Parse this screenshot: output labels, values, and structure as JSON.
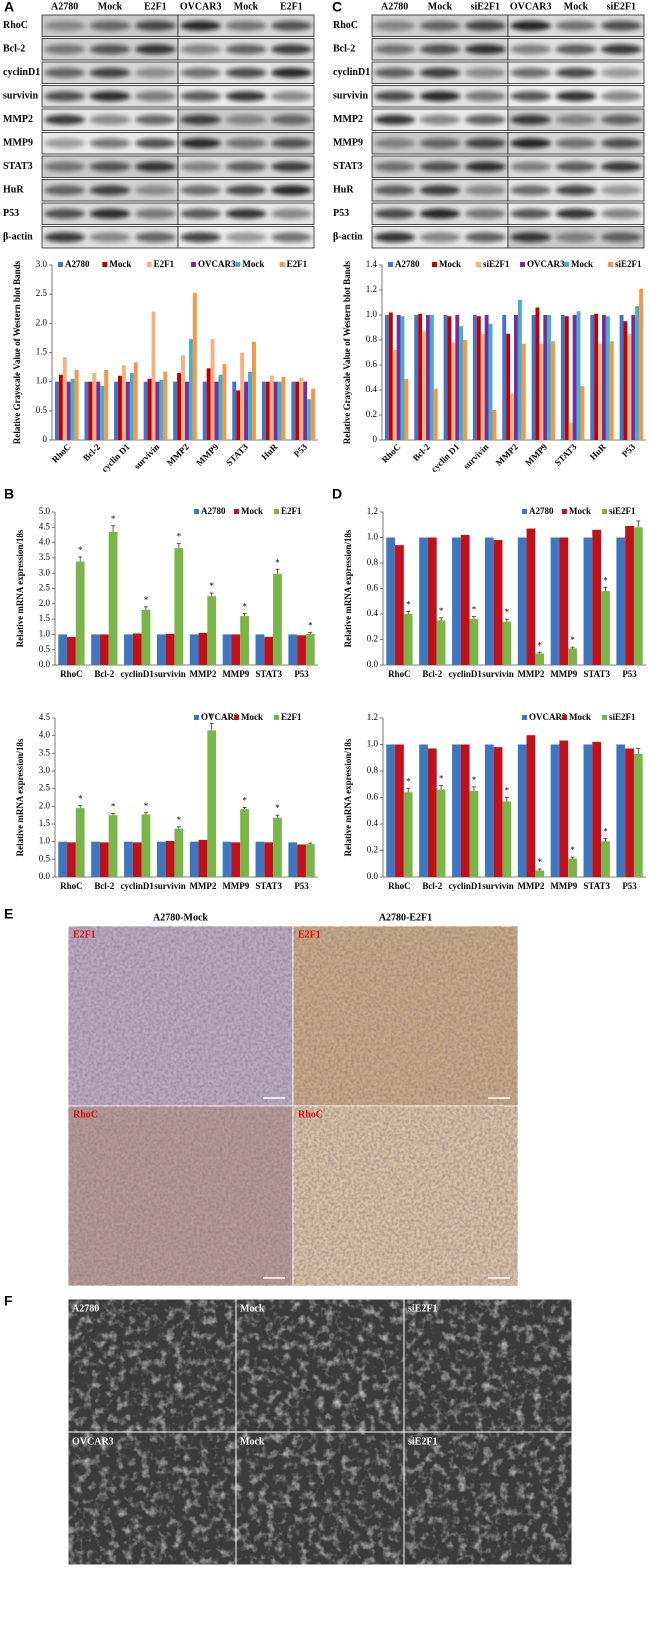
{
  "panel_labels": [
    "A",
    "B",
    "C",
    "D",
    "E",
    "F"
  ],
  "blots": [
    {
      "lanes": [
        "A2780",
        "Mock",
        "E2F1",
        "OVCAR3",
        "Mock",
        "E2F1"
      ],
      "rows": [
        "RhoC",
        "Bcl-2",
        "cyclinD1",
        "survivin",
        "MMP2",
        "MMP9",
        "STAT3",
        "HuR",
        "P53",
        "β-actin"
      ]
    },
    {
      "lanes": [
        "A2780",
        "Mock",
        "siE2F1",
        "OVCAR3",
        "Mock",
        "siE2F1"
      ],
      "rows": [
        "RhoC",
        "Bcl-2",
        "cyclinD1",
        "survivin",
        "MMP2",
        "MMP9",
        "STAT3",
        "HuR",
        "P53",
        "β-actin"
      ]
    }
  ],
  "chart_data": [
    {
      "type": "bar",
      "y_label": "Relative Grayscale Value of Western blot Bands",
      "categories": [
        "RhoC",
        "Bcl-2",
        "cyclin D1",
        "survivin",
        "MMP2",
        "MMP9",
        "STAT3",
        "HuR",
        "P53"
      ],
      "series": [
        {
          "name": "A2780",
          "color": "#4472c4",
          "values": [
            1.0,
            1.0,
            1.0,
            1.0,
            1.0,
            1.0,
            1.0,
            1.0,
            1.0
          ]
        },
        {
          "name": "Mock",
          "color": "#c00000",
          "values": [
            1.12,
            1.0,
            1.1,
            1.05,
            1.15,
            1.23,
            0.85,
            1.0,
            1.0
          ]
        },
        {
          "name": "E2F1",
          "color": "#f4b183",
          "values": [
            1.42,
            1.15,
            1.28,
            2.2,
            1.45,
            1.73,
            1.5,
            1.1,
            1.07
          ]
        },
        {
          "name": "OVCAR3",
          "color": "#7030a0",
          "values": [
            1.0,
            1.0,
            1.0,
            1.0,
            1.0,
            1.0,
            1.0,
            1.0,
            1.0
          ]
        },
        {
          "name": "Mock",
          "color": "#4bacc6",
          "values": [
            1.05,
            0.93,
            1.15,
            1.03,
            1.73,
            1.12,
            1.17,
            1.0,
            0.7
          ]
        },
        {
          "name": "E2F1",
          "color": "#f79646",
          "values": [
            1.2,
            1.2,
            1.33,
            1.17,
            2.52,
            1.3,
            1.68,
            1.08,
            0.88
          ]
        }
      ],
      "ylim": [
        0,
        3
      ],
      "yticks": [
        0,
        0.5,
        {
          "value": 1,
          "label": "1.0"
        },
        1.5,
        {
          "value": 2,
          "label": "2.0"
        },
        2.5,
        {
          "value": 3,
          "label": "3.0"
        }
      ],
      "grid": false,
      "legend": "top"
    },
    {
      "type": "bar",
      "y_label": "Relative Grayscale Value of Western blot Bands",
      "categories": [
        "RhoC",
        "Bcl-2",
        "cyclin D1",
        "survivin",
        "MMP2",
        "MMP9",
        "STAT3",
        "HuR",
        "P53"
      ],
      "series": [
        {
          "name": "A2780",
          "color": "#4472c4",
          "values": [
            1.0,
            1.0,
            1.0,
            1.0,
            1.0,
            1.0,
            1.0,
            1.0,
            1.0
          ]
        },
        {
          "name": "Mock",
          "color": "#c00000",
          "values": [
            1.02,
            1.01,
            0.99,
            0.99,
            0.85,
            1.06,
            0.99,
            1.01,
            0.95
          ]
        },
        {
          "name": "siE2F1",
          "color": "#f4b183",
          "values": [
            0.72,
            0.87,
            0.78,
            0.85,
            0.37,
            0.77,
            0.14,
            0.77,
            0.85
          ]
        },
        {
          "name": "OVCAR3",
          "color": "#7030a0",
          "values": [
            1.0,
            1.0,
            1.0,
            1.0,
            1.0,
            1.0,
            1.0,
            1.0,
            1.0
          ]
        },
        {
          "name": "Mock",
          "color": "#4bacc6",
          "values": [
            0.99,
            1.0,
            0.91,
            0.93,
            1.12,
            1.0,
            1.03,
            0.99,
            1.07
          ]
        },
        {
          "name": "siE2F1",
          "color": "#f79646",
          "values": [
            0.49,
            0.41,
            0.8,
            0.24,
            0.77,
            0.79,
            0.43,
            0.79,
            1.21
          ]
        }
      ],
      "ylim": [
        0,
        1.4
      ],
      "yticks": [
        0,
        0.2,
        0.4,
        0.6,
        0.8,
        {
          "value": 1,
          "label": "1.0"
        },
        1.2,
        1.4
      ],
      "grid": false,
      "legend": "top"
    },
    {
      "type": "bar",
      "y_label": "Relative mRNA expression/18s",
      "categories": [
        "RhoC",
        "Bcl-2",
        "cyclinD1",
        "survivin",
        "MMP2",
        "MMP9",
        "STAT3",
        "P53"
      ],
      "series": [
        {
          "name": "A2780",
          "color": "#3f76c0",
          "values": [
            1,
            1,
            1,
            1,
            1,
            1,
            1,
            1
          ]
        },
        {
          "name": "Mock",
          "color": "#c0111a",
          "values": [
            0.92,
            1.0,
            1.03,
            1.02,
            1.05,
            1.0,
            0.92,
            0.97
          ]
        },
        {
          "name": "E2F1",
          "color": "#79b548",
          "values": [
            3.38,
            4.35,
            1.8,
            3.82,
            2.25,
            1.6,
            2.98,
            1.02
          ],
          "errors": [
            0.15,
            0.2,
            0.1,
            0.15,
            0.1,
            0.08,
            0.15,
            0.05
          ],
          "significance": [
            "*",
            "*",
            "*",
            "*",
            "*",
            "*",
            "*",
            "*"
          ]
        }
      ],
      "ylim": [
        0,
        5
      ],
      "yticks": [
        {
          "value": 0,
          "label": "0.0"
        },
        0.5,
        {
          "value": 1,
          "label": "1.0"
        },
        1.5,
        {
          "value": 2,
          "label": "2.0"
        },
        2.5,
        {
          "value": 3,
          "label": "3.0"
        },
        3.5,
        {
          "value": 4,
          "label": "4.0"
        },
        4.5,
        {
          "value": 5,
          "label": "5.0"
        }
      ],
      "grid": false,
      "legend": "top-right"
    },
    {
      "type": "bar",
      "y_label": "Relative mRNA expression/18s",
      "categories": [
        "RhoC",
        "Bcl-2",
        "cyclinD1",
        "survivin",
        "MMP2",
        "MMP9",
        "STAT3",
        "P53"
      ],
      "series": [
        {
          "name": "OVCAR3",
          "color": "#3f76c0",
          "values": [
            1,
            1,
            1,
            1,
            1,
            1,
            1,
            0.98
          ]
        },
        {
          "name": "Mock",
          "color": "#c0111a",
          "values": [
            0.98,
            0.98,
            0.98,
            1.02,
            1.05,
            0.98,
            0.98,
            0.92
          ]
        },
        {
          "name": "E2F1",
          "color": "#79b548",
          "values": [
            1.95,
            1.75,
            1.77,
            1.37,
            4.15,
            1.92,
            1.68,
            0.93
          ],
          "errors": [
            0.07,
            0.05,
            0.05,
            0.05,
            0.2,
            0.05,
            0.07,
            0.03
          ],
          "significance": [
            "*",
            "*",
            "*",
            "*",
            "*",
            "*",
            "*",
            null
          ]
        }
      ],
      "ylim": [
        0,
        4.5
      ],
      "yticks": [
        {
          "value": 0,
          "label": "0.0"
        },
        0.5,
        {
          "value": 1,
          "label": "1.0"
        },
        1.5,
        {
          "value": 2,
          "label": "2.0"
        },
        2.5,
        {
          "value": 3,
          "label": "3.0"
        },
        3.5,
        {
          "value": 4,
          "label": "4.0"
        },
        4.5
      ],
      "grid": false,
      "legend": "top-right"
    },
    {
      "type": "bar",
      "y_label": "Relative mRNA expression/18s",
      "categories": [
        "RhoC",
        "Bcl-2",
        "cyclinD1",
        "survivin",
        "MMP2",
        "MMP9",
        "STAT3",
        "P53"
      ],
      "series": [
        {
          "name": "A2780",
          "color": "#3f76c0",
          "values": [
            1,
            1,
            1,
            1,
            1,
            1,
            1,
            1
          ]
        },
        {
          "name": "Mock",
          "color": "#c0111a",
          "values": [
            0.94,
            1.0,
            1.02,
            0.98,
            1.07,
            1.0,
            1.06,
            1.09
          ]
        },
        {
          "name": "siE2F1",
          "color": "#79b548",
          "values": [
            0.4,
            0.35,
            0.36,
            0.34,
            0.09,
            0.13,
            0.58,
            1.08
          ],
          "errors": [
            0.02,
            0.02,
            0.02,
            0.02,
            0.01,
            0.01,
            0.03,
            0.05
          ],
          "significance": [
            "*",
            "*",
            "*",
            "*",
            "*",
            "*",
            "*",
            null
          ]
        }
      ],
      "ylim": [
        0,
        1.2
      ],
      "yticks": [
        {
          "value": 0,
          "label": "0.0"
        },
        0.2,
        0.4,
        0.6,
        0.8,
        {
          "value": 1,
          "label": "1.0"
        },
        1.2
      ],
      "grid": false,
      "legend": "top-right"
    },
    {
      "type": "bar",
      "y_label": "Relative mRNA expression/18s",
      "categories": [
        "RhoC",
        "Bcl-2",
        "cyclinD1",
        "survivin",
        "MMP2",
        "MMP9",
        "STAT3",
        "P53"
      ],
      "series": [
        {
          "name": "OVCAR3",
          "color": "#3f76c0",
          "values": [
            1,
            1,
            1,
            1,
            1,
            1,
            1,
            1
          ]
        },
        {
          "name": "Mock",
          "color": "#c0111a",
          "values": [
            1.0,
            0.97,
            1.0,
            0.98,
            1.07,
            1.03,
            1.02,
            0.97
          ]
        },
        {
          "name": "siE2F1",
          "color": "#79b548",
          "values": [
            0.64,
            0.66,
            0.65,
            0.57,
            0.05,
            0.14,
            0.27,
            0.93
          ],
          "errors": [
            0.03,
            0.03,
            0.03,
            0.03,
            0.01,
            0.01,
            0.02,
            0.04
          ],
          "significance": [
            "*",
            "*",
            "*",
            "*",
            "*",
            "*",
            "*",
            null
          ]
        }
      ],
      "ylim": [
        0,
        1.2
      ],
      "yticks": [
        {
          "value": 0,
          "label": "0.0"
        },
        0.2,
        0.4,
        0.6,
        0.8,
        {
          "value": 1,
          "label": "1.0"
        },
        1.2
      ],
      "grid": false,
      "legend": "top-right"
    }
  ],
  "ihc": {
    "columns": [
      "A2780-Mock",
      "A2780-E2F1"
    ],
    "rows": [
      "E2F1",
      "RhoC"
    ]
  },
  "cells": {
    "labels": [
      "A2780",
      "Mock",
      "siE2F1",
      "OVCAR3",
      "Mock",
      "siE2F1"
    ]
  }
}
